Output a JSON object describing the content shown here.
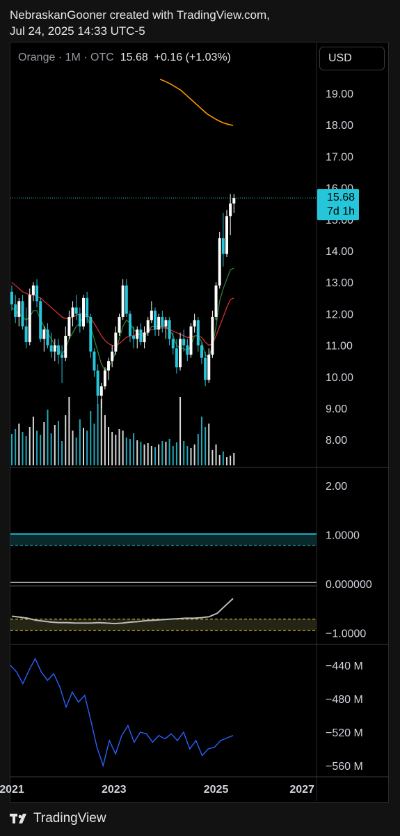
{
  "header": {
    "line1": "NebraskanGooner created with TradingView.com,",
    "line2": "Jul 24, 2025 14:33 UTC-5"
  },
  "legend": {
    "symbol": "Orange",
    "interval": "1M",
    "exchange": "OTC",
    "close": "15.68",
    "change": "+0.16",
    "change_pct": "(+1.03%)"
  },
  "currency_button": "USD",
  "price_label": {
    "value": "15.68",
    "countdown": "7d 1h"
  },
  "footer": {
    "brand": "TradingView"
  },
  "colors": {
    "up": "#ffffff",
    "down": "#26c6da",
    "ema_long": "#ff9800",
    "ma_red": "#d32f2f",
    "ma_green": "#2e7d32",
    "osc": "#bdbdbd",
    "obv": "#2962ff"
  },
  "chart_data": [
    {
      "type": "candlestick",
      "title": "Orange · 1M · OTC",
      "y_ticks": [
        "19.00",
        "18.00",
        "17.00",
        "16.00",
        "15.00",
        "14.00",
        "13.00",
        "12.00",
        "11.00",
        "10.00",
        "9.00",
        "8.00"
      ],
      "ylim": [
        7.2,
        20.3
      ],
      "x_ticks": [
        "2021",
        "2023",
        "2025",
        "2027"
      ],
      "candles_ohlc": [
        [
          12.7,
          12.9,
          12.1,
          12.3
        ],
        [
          12.3,
          12.6,
          11.7,
          11.9
        ],
        [
          11.9,
          12.5,
          11.6,
          12.4
        ],
        [
          12.4,
          12.6,
          11.5,
          11.6
        ],
        [
          11.6,
          12.2,
          10.9,
          11.1
        ],
        [
          11.1,
          12.8,
          11.0,
          12.6
        ],
        [
          12.6,
          13.0,
          12.4,
          12.9
        ],
        [
          12.9,
          13.1,
          12.2,
          12.4
        ],
        [
          12.4,
          12.5,
          11.1,
          11.2
        ],
        [
          11.2,
          11.6,
          10.8,
          11.5
        ],
        [
          11.5,
          11.7,
          10.9,
          11.0
        ],
        [
          11.0,
          11.4,
          10.6,
          10.8
        ],
        [
          10.8,
          11.2,
          10.5,
          11.0
        ],
        [
          11.0,
          11.2,
          10.4,
          10.7
        ],
        [
          10.7,
          11.0,
          9.8,
          10.6
        ],
        [
          10.6,
          11.6,
          10.5,
          11.3
        ],
        [
          11.3,
          12.1,
          11.2,
          11.9
        ],
        [
          11.9,
          12.4,
          11.6,
          12.2
        ],
        [
          12.2,
          12.6,
          11.8,
          12.0
        ],
        [
          12.0,
          12.2,
          11.4,
          11.6
        ],
        [
          11.6,
          12.6,
          11.5,
          12.5
        ],
        [
          12.5,
          12.7,
          11.7,
          11.9
        ],
        [
          11.9,
          12.0,
          10.6,
          10.8
        ],
        [
          10.8,
          10.9,
          10.0,
          10.2
        ],
        [
          10.2,
          10.4,
          9.1,
          9.4
        ],
        [
          9.4,
          9.8,
          9.0,
          9.7
        ],
        [
          9.7,
          10.3,
          9.6,
          10.2
        ],
        [
          10.2,
          10.6,
          9.9,
          10.5
        ],
        [
          10.5,
          11.0,
          10.3,
          10.8
        ],
        [
          10.8,
          11.6,
          10.7,
          11.4
        ],
        [
          11.4,
          12.0,
          11.3,
          11.9
        ],
        [
          11.9,
          13.1,
          11.8,
          12.9
        ],
        [
          12.9,
          13.1,
          11.9,
          12.0
        ],
        [
          12.0,
          12.1,
          11.1,
          11.3
        ],
        [
          11.3,
          11.6,
          10.9,
          11.2
        ],
        [
          11.2,
          11.6,
          10.9,
          11.5
        ],
        [
          11.5,
          11.7,
          11.0,
          11.1
        ],
        [
          11.1,
          11.6,
          10.9,
          11.4
        ],
        [
          11.4,
          11.9,
          11.3,
          11.8
        ],
        [
          11.8,
          12.4,
          11.7,
          12.1
        ],
        [
          12.1,
          12.2,
          11.3,
          11.5
        ],
        [
          11.5,
          12.0,
          11.3,
          11.9
        ],
        [
          11.9,
          12.1,
          11.4,
          11.6
        ],
        [
          11.6,
          11.9,
          11.2,
          11.8
        ],
        [
          11.8,
          11.9,
          11.0,
          11.2
        ],
        [
          11.2,
          11.4,
          10.7,
          10.9
        ],
        [
          10.9,
          11.2,
          10.1,
          10.3
        ],
        [
          10.3,
          11.4,
          10.2,
          11.2
        ],
        [
          11.2,
          11.5,
          10.8,
          11.0
        ],
        [
          11.0,
          11.2,
          10.5,
          10.7
        ],
        [
          10.7,
          11.7,
          10.6,
          11.6
        ],
        [
          11.6,
          12.0,
          11.4,
          11.8
        ],
        [
          11.8,
          11.9,
          10.8,
          11.0
        ],
        [
          11.0,
          11.1,
          10.4,
          10.6
        ],
        [
          10.6,
          10.8,
          9.7,
          9.9
        ],
        [
          9.9,
          10.9,
          9.8,
          10.7
        ],
        [
          10.7,
          12.1,
          10.6,
          11.9
        ],
        [
          11.9,
          13.0,
          11.8,
          12.9
        ],
        [
          12.9,
          14.6,
          12.8,
          14.4
        ],
        [
          14.4,
          15.2,
          13.5,
          13.9
        ],
        [
          13.9,
          15.3,
          13.8,
          15.1
        ],
        [
          15.1,
          15.8,
          14.5,
          15.5
        ],
        [
          15.5,
          15.8,
          15.2,
          15.68
        ]
      ],
      "volume_norm": [
        0.45,
        0.52,
        0.6,
        0.48,
        0.42,
        0.55,
        0.7,
        0.5,
        0.44,
        0.62,
        0.8,
        0.46,
        0.58,
        0.64,
        0.35,
        0.72,
        0.98,
        0.5,
        0.4,
        0.66,
        0.54,
        0.5,
        0.78,
        0.6,
        0.88,
        0.95,
        0.72,
        0.55,
        0.48,
        0.44,
        0.52,
        0.5,
        0.4,
        0.38,
        0.46,
        0.36,
        0.34,
        0.3,
        0.32,
        0.28,
        0.26,
        0.3,
        0.35,
        0.34,
        0.38,
        0.28,
        0.33,
        0.98,
        0.35,
        0.28,
        0.25,
        0.3,
        0.45,
        0.7,
        0.55,
        0.6,
        0.22,
        0.3,
        0.15,
        0.2,
        0.12,
        0.14,
        0.18
      ],
      "ema_long": [
        19.45,
        19.38,
        19.3,
        19.2,
        19.1,
        18.95,
        18.8,
        18.65,
        18.5,
        18.35,
        18.25,
        18.15,
        18.07,
        18.02,
        17.98
      ],
      "ma_red": [
        13.0,
        12.9,
        12.8,
        12.7,
        12.65,
        12.6,
        12.6,
        12.55,
        12.5,
        12.4,
        12.3,
        12.2,
        12.1,
        12.0,
        11.9,
        11.85,
        11.85,
        11.9,
        11.95,
        12.0,
        12.0,
        11.95,
        11.85,
        11.7,
        11.5,
        11.3,
        11.15,
        11.05,
        11.0,
        11.0,
        11.05,
        11.15,
        11.25,
        11.3,
        11.3,
        11.35,
        11.35,
        11.4,
        11.45,
        11.5,
        11.5,
        11.55,
        11.55,
        11.55,
        11.5,
        11.45,
        11.4,
        11.35,
        11.3,
        11.25,
        11.25,
        11.3,
        11.3,
        11.25,
        11.1,
        11.0,
        11.05,
        11.3,
        11.6,
        11.9,
        12.2,
        12.45,
        12.5
      ],
      "ma_green": [
        12.2,
        12.1,
        12.0,
        11.9,
        11.8,
        11.9,
        12.1,
        12.1,
        11.8,
        11.6,
        11.4,
        11.2,
        11.0,
        10.9,
        10.7,
        10.9,
        11.2,
        11.4,
        11.6,
        11.7,
        11.9,
        11.9,
        11.6,
        11.2,
        10.8,
        10.4,
        10.2,
        10.3,
        10.5,
        10.8,
        11.2,
        11.6,
        11.8,
        11.7,
        11.5,
        11.4,
        11.3,
        11.3,
        11.4,
        11.6,
        11.6,
        11.6,
        11.6,
        11.6,
        11.5,
        11.3,
        11.0,
        10.9,
        10.9,
        10.8,
        11.0,
        11.3,
        11.3,
        11.1,
        10.7,
        10.6,
        11.0,
        11.6,
        12.4,
        12.8,
        13.1,
        13.4,
        13.45
      ],
      "volume_unit": "relative"
    },
    {
      "type": "line",
      "title": "",
      "y_ticks": [
        "2.00",
        "1.0000",
        "0.000000",
        "−1.0000"
      ],
      "ylim": [
        -1.35,
        2.2
      ],
      "levels": [
        1.0,
        0.78,
        -0.72,
        -0.95
      ],
      "series": [
        {
          "values": [
            -0.66,
            -0.68,
            -0.7,
            -0.74,
            -0.76,
            -0.78,
            -0.79,
            -0.79,
            -0.8,
            -0.8,
            -0.8,
            -0.79,
            -0.8,
            -0.81,
            -0.8,
            -0.78,
            -0.77,
            -0.75,
            -0.74,
            -0.73,
            -0.72,
            -0.71,
            -0.7,
            -0.7,
            -0.69,
            -0.67,
            -0.6,
            -0.45,
            -0.3
          ]
        }
      ]
    },
    {
      "type": "line",
      "title": "",
      "y_ticks": [
        "−440 M",
        "−480 M",
        "−520 M",
        "−560 M"
      ],
      "ylim": [
        -575,
        -425
      ],
      "series": [
        {
          "values": [
            -440,
            -448,
            -462,
            -446,
            -432,
            -448,
            -458,
            -450,
            -466,
            -490,
            -472,
            -484,
            -476,
            -506,
            -538,
            -560,
            -530,
            -546,
            -524,
            -512,
            -532,
            -520,
            -522,
            -532,
            -524,
            -528,
            -522,
            -530,
            -520,
            -540,
            -530,
            -548,
            -540,
            -538,
            -530,
            -527,
            -524
          ]
        }
      ]
    }
  ]
}
